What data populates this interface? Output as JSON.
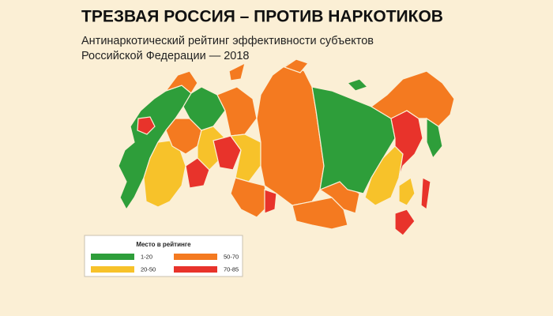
{
  "header": {
    "title": "ТРЕЗВАЯ РОССИЯ – ПРОТИВ НАРКОТИКОВ",
    "subtitle_lines": [
      "Антинаркотический рейтинг эффективности субъектов",
      "Российской Федерации — 2018"
    ]
  },
  "legend": {
    "title": "Место в рейтинге",
    "items": [
      {
        "label": "1-20",
        "color": "#2e9e3a"
      },
      {
        "label": "50-70",
        "color": "#f47a20"
      },
      {
        "label": "20-50",
        "color": "#f7c22a"
      },
      {
        "label": "70-85",
        "color": "#e8332b"
      }
    ]
  }
}
